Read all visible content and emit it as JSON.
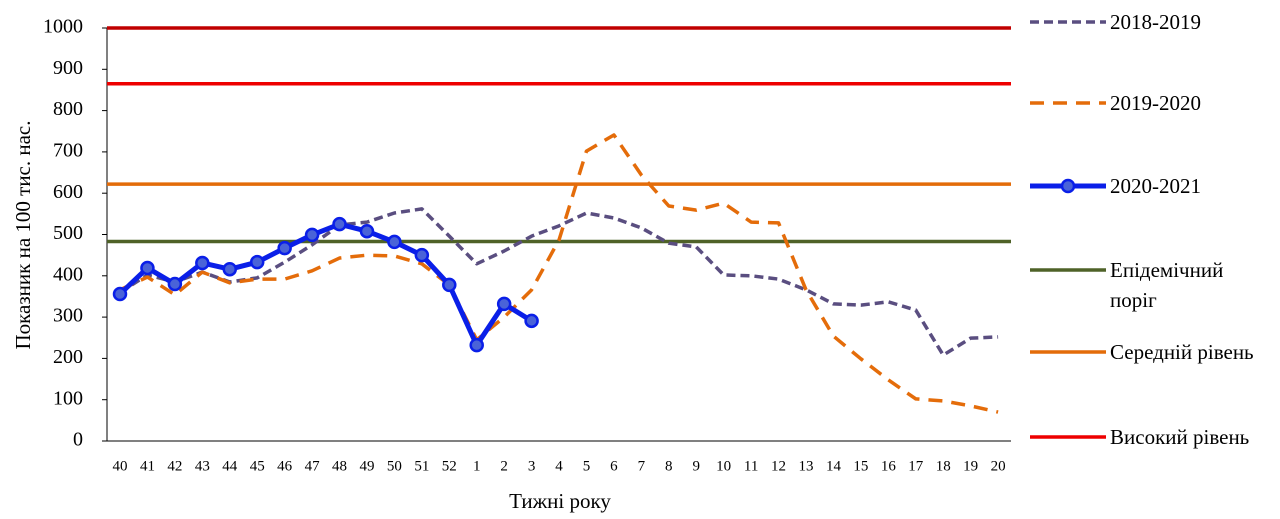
{
  "chart_data": {
    "type": "line",
    "y_label": "Показник на 100 тис. нас.",
    "x_label": "Тижні року",
    "categories": [
      "40",
      "41",
      "42",
      "43",
      "44",
      "45",
      "46",
      "47",
      "48",
      "49",
      "50",
      "51",
      "52",
      "1",
      "2",
      "3",
      "4",
      "5",
      "6",
      "7",
      "8",
      "9",
      "10",
      "11",
      "12",
      "13",
      "14",
      "15",
      "16",
      "17",
      "18",
      "19",
      "20"
    ],
    "ylim": [
      0,
      1000
    ],
    "yticks": [
      0,
      100,
      200,
      300,
      400,
      500,
      600,
      700,
      800,
      900,
      1000
    ],
    "grid": false,
    "series": [
      {
        "name": "2018-2019",
        "color": "#5a4e80",
        "style": "dashed",
        "values": [
          360,
          402,
          385,
          409,
          385,
          395,
          433,
          475,
          523,
          530,
          552,
          562,
          496,
          429,
          460,
          496,
          521,
          552,
          540,
          516,
          479,
          470,
          402,
          400,
          392,
          366,
          332,
          329,
          337,
          317,
          208,
          249,
          252
        ]
      },
      {
        "name": "2019-2020",
        "color": "#e46c0a",
        "style": "dashed-long",
        "values": [
          366,
          397,
          354,
          409,
          383,
          392,
          392,
          412,
          443,
          450,
          448,
          429,
          378,
          245,
          300,
          366,
          487,
          702,
          741,
          644,
          569,
          559,
          576,
          530,
          528,
          366,
          254,
          199,
          148,
          102,
          97,
          85,
          70
        ]
      },
      {
        "name": "2020-2021",
        "color": "#0a1fe8",
        "style": "markers",
        "values": [
          356,
          419,
          380,
          431,
          416,
          433,
          467,
          499,
          525,
          508,
          482,
          450,
          378,
          232,
          332,
          291,
          null,
          null,
          null,
          null,
          null,
          null,
          null,
          null,
          null,
          null,
          null,
          null,
          null,
          null,
          null,
          null,
          null
        ]
      }
    ],
    "hlines": [
      {
        "name": " Епідемічний поріг",
        "color": "#4f6228",
        "value": 483
      },
      {
        "name": "Середній рівень",
        "color": "#e36c09",
        "value": 622
      },
      {
        "name": "Високий рівень",
        "color": "#ee0000",
        "value": 865
      },
      {
        "color": "#c00000",
        "value": 1000
      }
    ]
  }
}
